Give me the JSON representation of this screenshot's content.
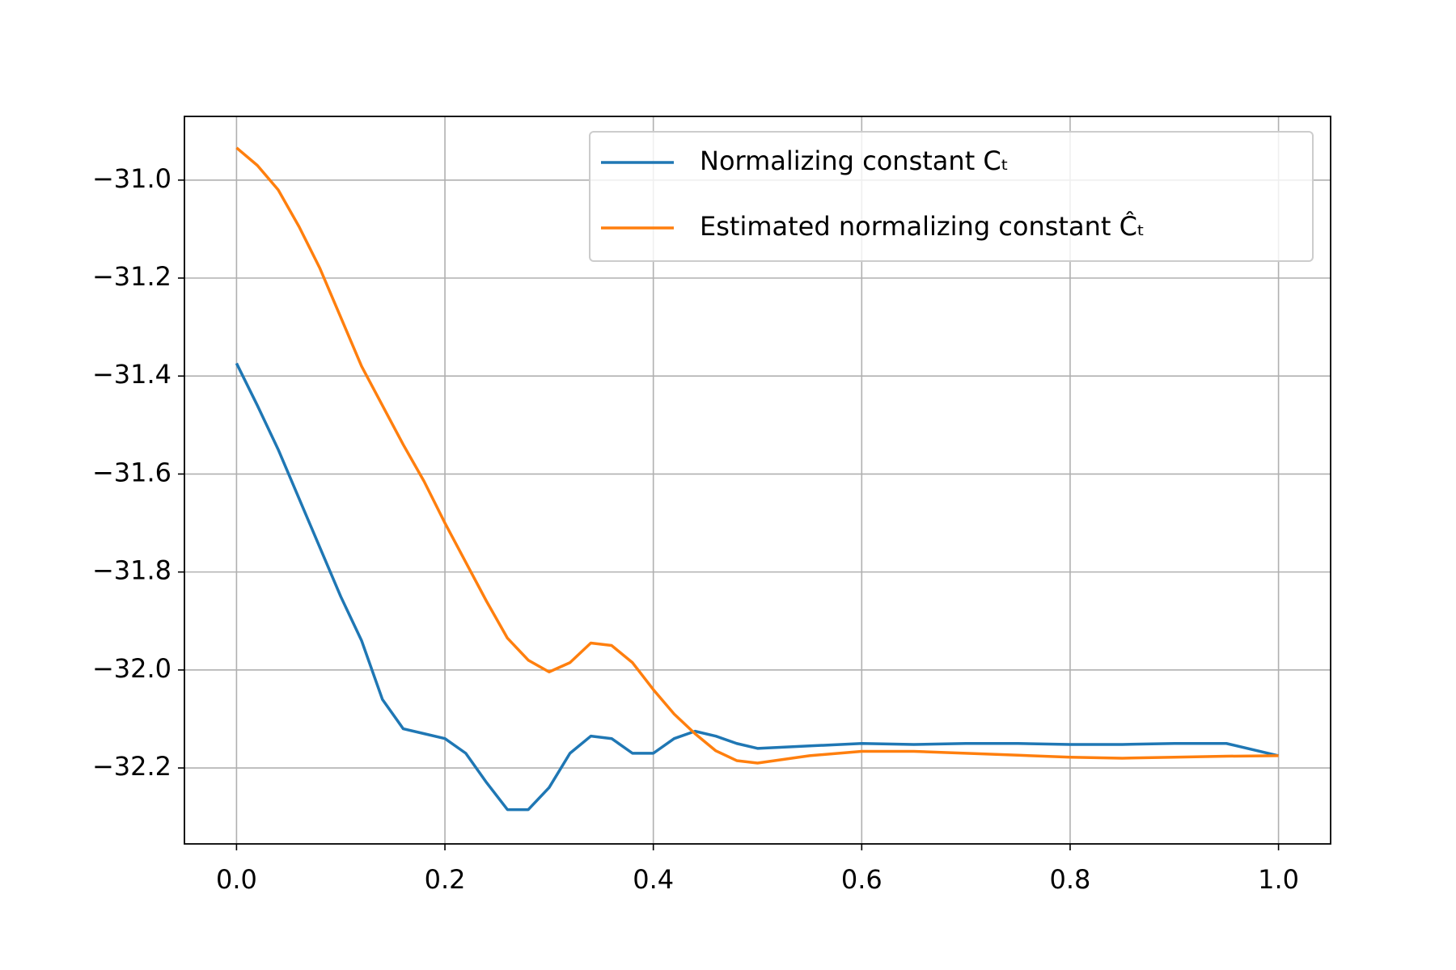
{
  "chart_data": {
    "type": "line",
    "x": [
      0,
      0.02,
      0.04,
      0.06,
      0.08,
      0.1,
      0.12,
      0.14,
      0.16,
      0.18,
      0.2,
      0.22,
      0.24,
      0.26,
      0.28,
      0.3,
      0.32,
      0.34,
      0.36,
      0.38,
      0.4,
      0.42,
      0.44,
      0.46,
      0.48,
      0.5,
      0.55,
      0.6,
      0.65,
      0.7,
      0.75,
      0.8,
      0.85,
      0.9,
      0.95,
      1.0
    ],
    "series": [
      {
        "name": "Normalizing constant Cₜ",
        "color": "#1f77b4",
        "values": [
          -31.374,
          -31.46,
          -31.55,
          -31.65,
          -31.75,
          -31.85,
          -31.94,
          -32.06,
          -32.12,
          -32.13,
          -32.14,
          -32.17,
          -32.23,
          -32.285,
          -32.285,
          -32.24,
          -32.17,
          -32.135,
          -32.14,
          -32.17,
          -32.17,
          -32.14,
          -32.125,
          -32.135,
          -32.15,
          -32.16,
          -32.155,
          -32.15,
          -32.152,
          -32.15,
          -32.15,
          -32.152,
          -32.152,
          -32.15,
          -32.15,
          -32.175
        ]
      },
      {
        "name": "Estimated normalizing constant  Ĉₜ",
        "color": "#ff7f0e",
        "values": [
          -30.934,
          -30.97,
          -31.02,
          -31.095,
          -31.18,
          -31.28,
          -31.38,
          -31.46,
          -31.54,
          -31.615,
          -31.7,
          -31.78,
          -31.86,
          -31.935,
          -31.98,
          -32.004,
          -31.985,
          -31.945,
          -31.95,
          -31.985,
          -32.04,
          -32.09,
          -32.13,
          -32.165,
          -32.185,
          -32.19,
          -32.175,
          -32.166,
          -32.166,
          -32.17,
          -32.174,
          -32.178,
          -32.18,
          -32.178,
          -32.176,
          -32.175
        ]
      }
    ],
    "xlim": [
      -0.05,
      1.05
    ],
    "ylim": [
      -32.355,
      -30.87
    ],
    "xticks": [
      {
        "value": 0,
        "label": "0.0"
      },
      {
        "value": 0.2,
        "label": "0.2"
      },
      {
        "value": 0.4,
        "label": "0.4"
      },
      {
        "value": 0.6,
        "label": "0.6"
      },
      {
        "value": 0.8,
        "label": "0.8"
      },
      {
        "value": 1.0,
        "label": "1.0"
      }
    ],
    "yticks": [
      {
        "value": -32.2,
        "label": "−32.2"
      },
      {
        "value": -32.0,
        "label": "−32.0"
      },
      {
        "value": -31.8,
        "label": "−31.8"
      },
      {
        "value": -31.6,
        "label": "−31.6"
      },
      {
        "value": -31.4,
        "label": "−31.4"
      },
      {
        "value": -31.2,
        "label": "−31.2"
      },
      {
        "value": -31.0,
        "label": "−31.0"
      }
    ],
    "grid": true,
    "legend": "upper right"
  }
}
